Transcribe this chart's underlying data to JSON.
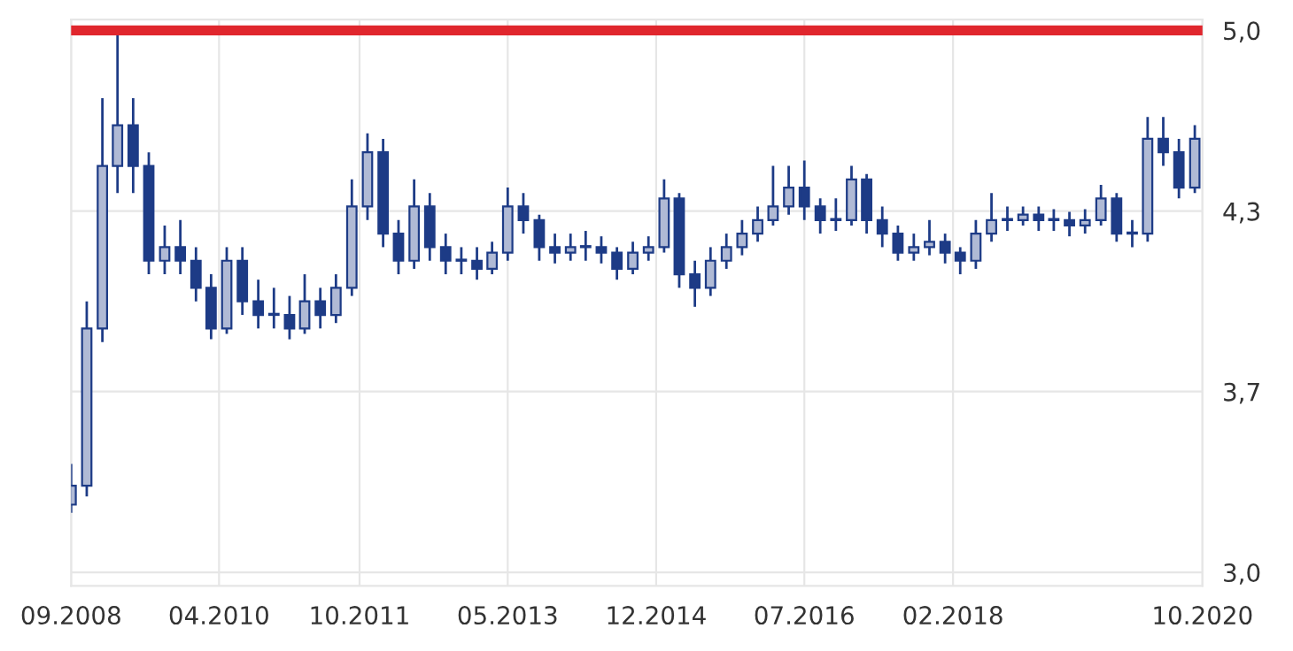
{
  "chart_data": {
    "type": "candlestick",
    "x": [
      "2008-09",
      "2008-11",
      "2009-01",
      "2009-03",
      "2009-05",
      "2009-07",
      "2009-09",
      "2009-11",
      "2010-01",
      "2010-03",
      "2010-05",
      "2010-07",
      "2010-09",
      "2010-11",
      "2011-01",
      "2011-03",
      "2011-05",
      "2011-07",
      "2011-09",
      "2011-11",
      "2012-01",
      "2012-03",
      "2012-05",
      "2012-07",
      "2012-09",
      "2012-11",
      "2013-01",
      "2013-03",
      "2013-05",
      "2013-07",
      "2013-09",
      "2013-11",
      "2014-01",
      "2014-03",
      "2014-05",
      "2014-07",
      "2014-09",
      "2014-11",
      "2015-01",
      "2015-03",
      "2015-05",
      "2015-07",
      "2015-09",
      "2015-11",
      "2016-01",
      "2016-03",
      "2016-05",
      "2016-07",
      "2016-09",
      "2016-11",
      "2017-01",
      "2017-03",
      "2017-05",
      "2017-07",
      "2017-09",
      "2017-11",
      "2018-01",
      "2018-03",
      "2018-05",
      "2018-07",
      "2018-09",
      "2018-11",
      "2019-01",
      "2019-03",
      "2019-05",
      "2019-07",
      "2019-09",
      "2019-11",
      "2020-01",
      "2020-03",
      "2020-05",
      "2020-07",
      "2020-09"
    ],
    "ohlc": [
      [
        3.25,
        3.4,
        3.22,
        3.32
      ],
      [
        3.32,
        4.0,
        3.28,
        3.9
      ],
      [
        3.9,
        4.75,
        3.85,
        4.5
      ],
      [
        4.5,
        5.0,
        4.4,
        4.65
      ],
      [
        4.65,
        4.75,
        4.4,
        4.5
      ],
      [
        4.5,
        4.55,
        4.1,
        4.15
      ],
      [
        4.15,
        4.28,
        4.1,
        4.2
      ],
      [
        4.2,
        4.3,
        4.1,
        4.15
      ],
      [
        4.15,
        4.2,
        4.0,
        4.05
      ],
      [
        4.05,
        4.1,
        3.86,
        3.9
      ],
      [
        3.9,
        4.2,
        3.88,
        4.15
      ],
      [
        4.15,
        4.2,
        3.95,
        4.0
      ],
      [
        4.0,
        4.08,
        3.9,
        3.95
      ],
      [
        3.95,
        4.05,
        3.9,
        3.95
      ],
      [
        3.95,
        4.02,
        3.86,
        3.9
      ],
      [
        3.9,
        4.1,
        3.88,
        4.0
      ],
      [
        4.0,
        4.05,
        3.9,
        3.95
      ],
      [
        3.95,
        4.1,
        3.92,
        4.05
      ],
      [
        4.05,
        4.45,
        4.02,
        4.35
      ],
      [
        4.35,
        4.62,
        4.3,
        4.55
      ],
      [
        4.55,
        4.6,
        4.2,
        4.25
      ],
      [
        4.25,
        4.3,
        4.1,
        4.15
      ],
      [
        4.15,
        4.45,
        4.12,
        4.35
      ],
      [
        4.35,
        4.4,
        4.15,
        4.2
      ],
      [
        4.2,
        4.25,
        4.1,
        4.15
      ],
      [
        4.15,
        4.2,
        4.1,
        4.15
      ],
      [
        4.15,
        4.2,
        4.08,
        4.12
      ],
      [
        4.12,
        4.22,
        4.1,
        4.18
      ],
      [
        4.18,
        4.42,
        4.15,
        4.35
      ],
      [
        4.35,
        4.4,
        4.25,
        4.3
      ],
      [
        4.3,
        4.32,
        4.15,
        4.2
      ],
      [
        4.2,
        4.25,
        4.14,
        4.18
      ],
      [
        4.18,
        4.25,
        4.15,
        4.2
      ],
      [
        4.2,
        4.26,
        4.15,
        4.2
      ],
      [
        4.2,
        4.24,
        4.14,
        4.18
      ],
      [
        4.18,
        4.2,
        4.08,
        4.12
      ],
      [
        4.12,
        4.22,
        4.1,
        4.18
      ],
      [
        4.18,
        4.24,
        4.15,
        4.2
      ],
      [
        4.2,
        4.45,
        4.18,
        4.38
      ],
      [
        4.38,
        4.4,
        4.05,
        4.1
      ],
      [
        4.1,
        4.15,
        3.98,
        4.05
      ],
      [
        4.05,
        4.2,
        4.02,
        4.15
      ],
      [
        4.15,
        4.25,
        4.12,
        4.2
      ],
      [
        4.2,
        4.3,
        4.17,
        4.25
      ],
      [
        4.25,
        4.35,
        4.22,
        4.3
      ],
      [
        4.3,
        4.5,
        4.28,
        4.35
      ],
      [
        4.35,
        4.5,
        4.32,
        4.42
      ],
      [
        4.42,
        4.52,
        4.3,
        4.35
      ],
      [
        4.35,
        4.38,
        4.25,
        4.3
      ],
      [
        4.3,
        4.38,
        4.26,
        4.3
      ],
      [
        4.3,
        4.5,
        4.28,
        4.45
      ],
      [
        4.45,
        4.47,
        4.25,
        4.3
      ],
      [
        4.3,
        4.35,
        4.2,
        4.25
      ],
      [
        4.25,
        4.28,
        4.15,
        4.18
      ],
      [
        4.18,
        4.25,
        4.15,
        4.2
      ],
      [
        4.2,
        4.3,
        4.17,
        4.22
      ],
      [
        4.22,
        4.25,
        4.14,
        4.18
      ],
      [
        4.18,
        4.2,
        4.1,
        4.15
      ],
      [
        4.15,
        4.3,
        4.12,
        4.25
      ],
      [
        4.25,
        4.4,
        4.22,
        4.3
      ],
      [
        4.3,
        4.35,
        4.26,
        4.3
      ],
      [
        4.3,
        4.35,
        4.28,
        4.32
      ],
      [
        4.32,
        4.35,
        4.26,
        4.3
      ],
      [
        4.3,
        4.34,
        4.26,
        4.3
      ],
      [
        4.3,
        4.33,
        4.24,
        4.28
      ],
      [
        4.28,
        4.34,
        4.25,
        4.3
      ],
      [
        4.3,
        4.43,
        4.28,
        4.38
      ],
      [
        4.38,
        4.4,
        4.22,
        4.25
      ],
      [
        4.25,
        4.3,
        4.2,
        4.25
      ],
      [
        4.25,
        4.68,
        4.22,
        4.6
      ],
      [
        4.6,
        4.68,
        4.5,
        4.55
      ],
      [
        4.55,
        4.6,
        4.38,
        4.42
      ],
      [
        4.42,
        4.65,
        4.4,
        4.6
      ]
    ],
    "color": "#1d3b86",
    "xlim": [
      "2008-09",
      "2020-10"
    ],
    "xticks": [
      {
        "value": "2008-09",
        "label": "09.2008"
      },
      {
        "value": "2010-04",
        "label": "04.2010"
      },
      {
        "value": "2011-10",
        "label": "10.2011"
      },
      {
        "value": "2013-05",
        "label": "05.2013"
      },
      {
        "value": "2014-12",
        "label": "12.2014"
      },
      {
        "value": "2016-07",
        "label": "07.2016"
      },
      {
        "value": "2018-02",
        "label": "02.2018"
      },
      {
        "value": "2020-10",
        "label": "10.2020"
      }
    ],
    "ylim": [
      2.95,
      5.04
    ],
    "yticks": [
      {
        "value": 3.0,
        "label": "3,0"
      },
      {
        "value": 3.667,
        "label": "3,7"
      },
      {
        "value": 4.333,
        "label": "4,3"
      },
      {
        "value": 5.0,
        "label": "5,0"
      }
    ],
    "ref_lines": [
      {
        "axis": "y",
        "value": 5.0,
        "color": "#e0262d"
      }
    ],
    "grid": true
  }
}
